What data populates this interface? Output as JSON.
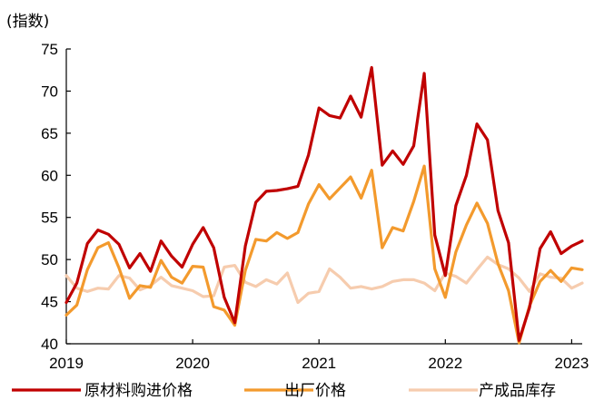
{
  "chart_data": {
    "type": "line",
    "title": "",
    "ylabel": "(指数)",
    "xlabel": "",
    "ylim": [
      40,
      75
    ],
    "yticks": [
      40,
      45,
      50,
      55,
      60,
      65,
      70,
      75
    ],
    "xlim": [
      2019.0,
      2023.0833
    ],
    "xticks": [
      2019,
      2020,
      2021,
      2022,
      2023
    ],
    "x_start": 2019.0,
    "x_step": 0.08333333,
    "grid": false,
    "legend_position": "bottom",
    "series": [
      {
        "name": "原材料购进价格",
        "color": "#C00000",
        "values": [
          44.9,
          47.2,
          51.9,
          53.5,
          53.0,
          51.8,
          49.0,
          50.7,
          48.6,
          52.2,
          50.4,
          49.1,
          51.8,
          53.8,
          51.4,
          45.5,
          42.5,
          51.6,
          56.8,
          58.1,
          58.2,
          58.4,
          58.7,
          62.4,
          68.0,
          67.1,
          66.8,
          69.4,
          66.9,
          72.8,
          61.2,
          62.9,
          61.3,
          63.5,
          72.1,
          52.9,
          48.1,
          56.4,
          60.0,
          66.1,
          64.2,
          55.8,
          52.0,
          40.4,
          44.3,
          51.3,
          53.3,
          50.7,
          51.6,
          52.2
        ]
      },
      {
        "name": "出厂价格",
        "color": "#F39A2D",
        "values": [
          43.4,
          44.6,
          48.8,
          51.4,
          52.0,
          49.0,
          45.4,
          46.9,
          46.7,
          49.9,
          47.9,
          47.2,
          49.2,
          49.1,
          44.4,
          44.0,
          42.2,
          48.7,
          52.4,
          52.2,
          53.2,
          52.5,
          53.2,
          56.6,
          58.9,
          57.2,
          58.5,
          59.8,
          57.3,
          60.6,
          51.4,
          53.8,
          53.4,
          56.9,
          61.1,
          48.9,
          45.5,
          50.9,
          54.1,
          56.7,
          54.3,
          49.5,
          46.3,
          40.1,
          44.5,
          47.4,
          48.7,
          47.4,
          49.0,
          48.8
        ]
      },
      {
        "name": "产成品库存",
        "color": "#F6CCAE",
        "values": [
          48.1,
          46.6,
          46.2,
          46.6,
          46.5,
          48.1,
          47.8,
          46.4,
          46.9,
          47.9,
          46.9,
          46.6,
          46.3,
          45.6,
          45.7,
          49.1,
          49.3,
          47.3,
          46.8,
          47.6,
          47.1,
          48.4,
          44.9,
          46.0,
          46.2,
          48.9,
          47.9,
          46.6,
          46.8,
          46.5,
          46.8,
          47.4,
          47.6,
          47.6,
          47.2,
          46.3,
          48.4,
          48.0,
          47.2,
          48.8,
          50.3,
          49.4,
          48.9,
          47.8,
          46.2,
          48.3,
          47.9,
          47.8,
          46.6,
          47.2
        ]
      }
    ]
  }
}
